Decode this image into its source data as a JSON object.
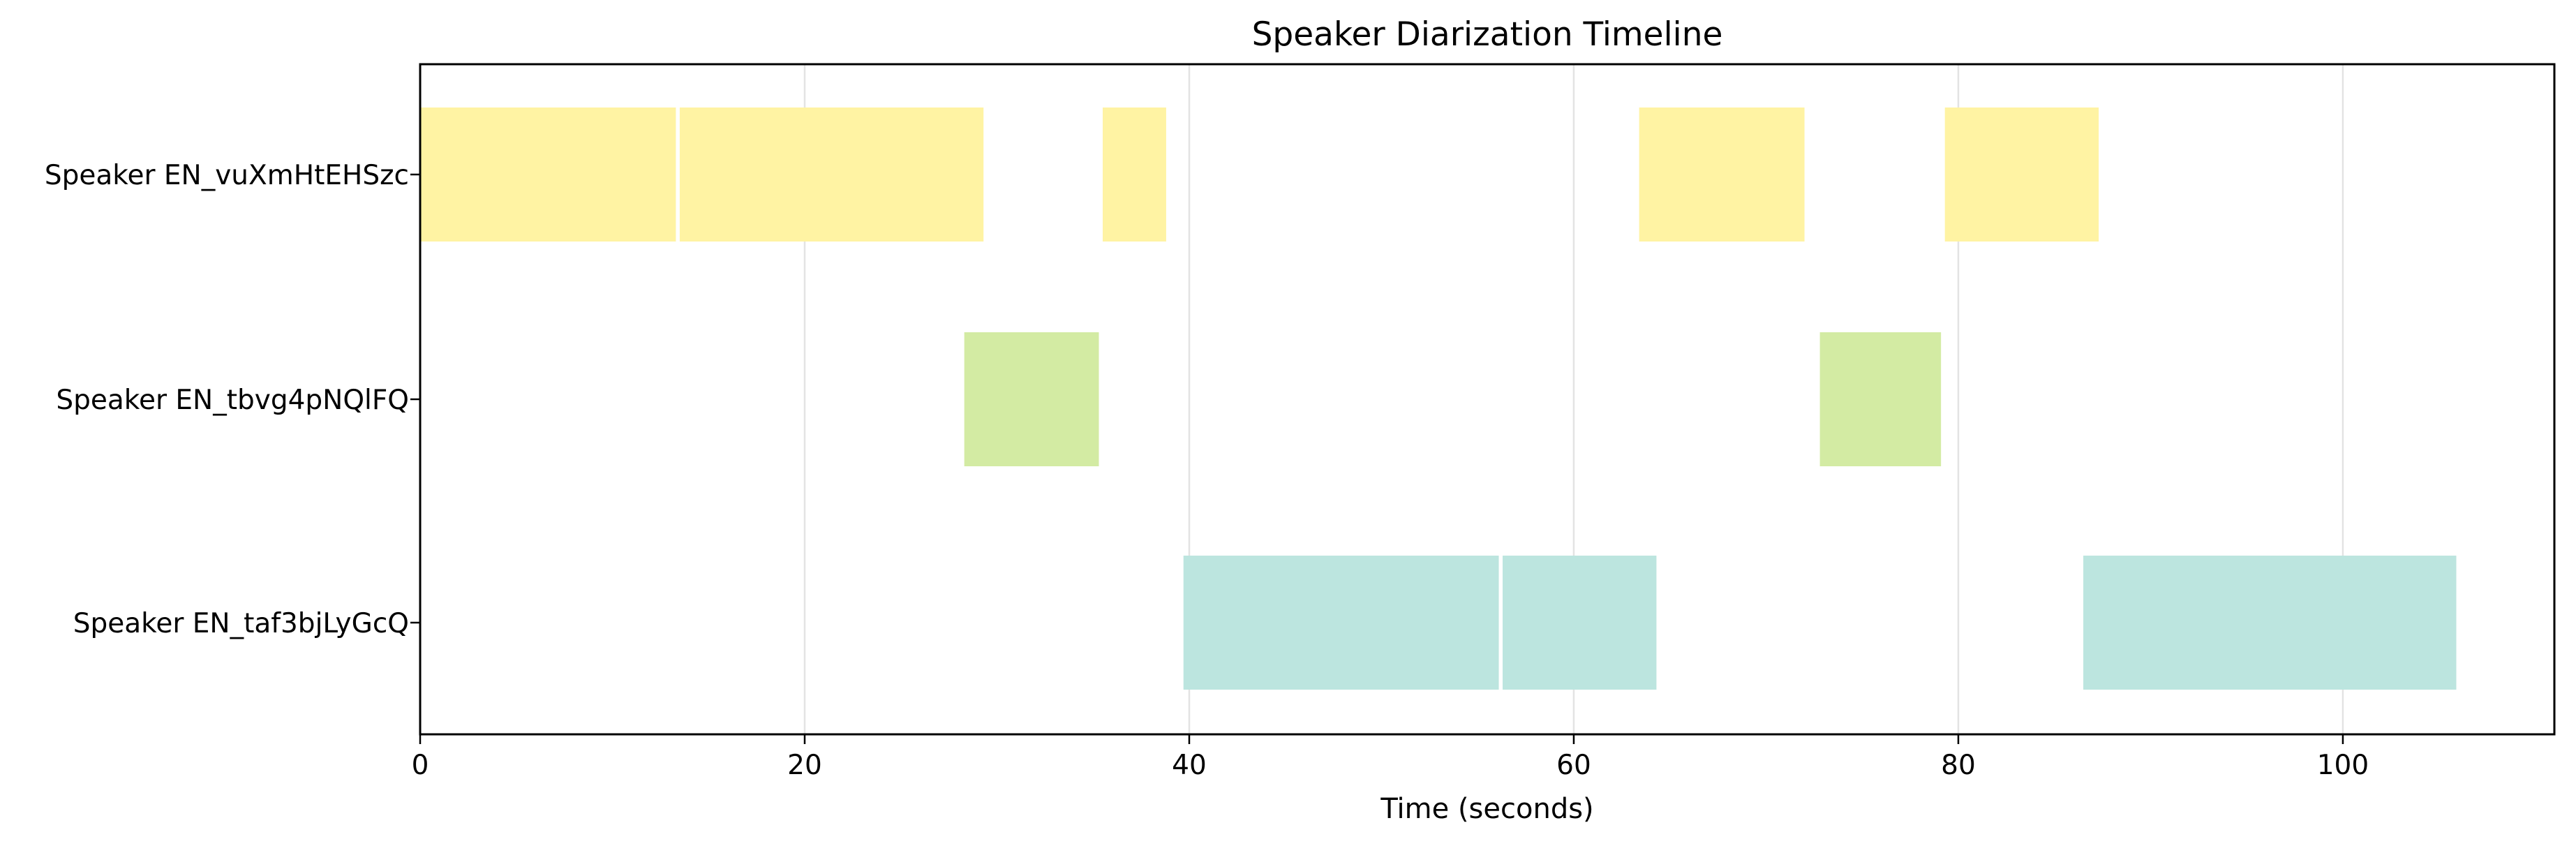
{
  "chart_data": {
    "type": "timeline",
    "title": "Speaker Diarization Timeline",
    "xlabel": "Time (seconds)",
    "ylabel": "",
    "xlim": [
      0,
      111
    ],
    "xticks": [
      0,
      20,
      40,
      60,
      80,
      100
    ],
    "grid": "vertical",
    "legend": "none",
    "speakers": [
      {
        "label": "Speaker EN_vuXmHtEHSzc",
        "color": "#fff3a3",
        "segments": [
          [
            0,
            13.3
          ],
          [
            13.5,
            29.3
          ],
          [
            35.5,
            38.8
          ],
          [
            63.4,
            72.0
          ],
          [
            79.3,
            87.3
          ]
        ]
      },
      {
        "label": "Speaker EN_tbvg4pNQlFQ",
        "color": "#d3eba3",
        "segments": [
          [
            28.3,
            35.3
          ],
          [
            72.8,
            79.1
          ]
        ]
      },
      {
        "label": "Speaker EN_taf3bjLyGcQ",
        "color": "#bce5df",
        "segments": [
          [
            39.7,
            56.1
          ],
          [
            56.3,
            64.3
          ],
          [
            86.5,
            105.9
          ]
        ]
      }
    ]
  }
}
